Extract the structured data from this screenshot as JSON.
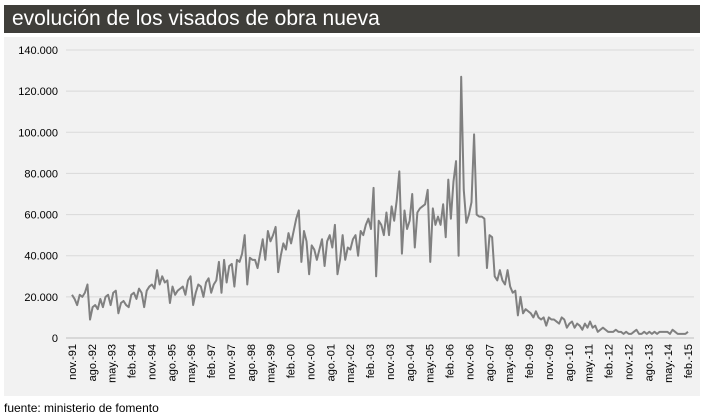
{
  "title": "evolución de los visados de obra nueva",
  "source_note": "fuente: ministerio de fomento",
  "colors": {
    "title_bg": "#3f3e3a",
    "plot_bg": "#f2f2f2",
    "grid": "#d9d9d9",
    "line": "#808080"
  },
  "chart_data": {
    "type": "line",
    "title": "evolución de los visados de obra nueva",
    "xlabel": "",
    "ylabel": "",
    "ylim": [
      0,
      140000
    ],
    "yticks": [
      0,
      20000,
      40000,
      60000,
      80000,
      100000,
      120000,
      140000
    ],
    "ytick_labels": [
      "0",
      "20.000",
      "40.000",
      "60.000",
      "80.000",
      "100.000",
      "120.000",
      "140.000"
    ],
    "grid": true,
    "x_start": "1991-11",
    "x_end": "2015-02",
    "xtick_labels": [
      "nov.-91",
      "ago.-92",
      "may.-93",
      "feb.-94",
      "nov.-94",
      "ago.-95",
      "may.-96",
      "feb.-97",
      "nov.-97",
      "ago.-98",
      "may.-99",
      "feb.-00",
      "nov.-00",
      "ago.-01",
      "may.-02",
      "feb.-03",
      "nov.-03",
      "ago.-04",
      "may.-05",
      "feb.-06",
      "nov.-06",
      "ago.-07",
      "may.-08",
      "feb.-09",
      "nov.-09",
      "ago.-10",
      "may.-11",
      "feb.-12",
      "nov.-12",
      "ago.-13",
      "may.-14",
      "feb.-15"
    ],
    "series": [
      {
        "values": [
          21000,
          19000,
          16000,
          21000,
          20000,
          22000,
          26000,
          9000,
          15000,
          16000,
          14000,
          19000,
          15000,
          20000,
          21000,
          16000,
          22000,
          23000,
          12000,
          17000,
          18000,
          16000,
          15000,
          21000,
          22000,
          19000,
          24000,
          22000,
          15000,
          23000,
          25000,
          26000,
          24000,
          33000,
          26000,
          30000,
          27000,
          28000,
          17000,
          25000,
          21000,
          23000,
          24000,
          25000,
          21000,
          28000,
          30000,
          16000,
          22000,
          26000,
          25000,
          20000,
          27000,
          29000,
          22000,
          26000,
          28000,
          37000,
          22000,
          38000,
          27000,
          35000,
          36000,
          25000,
          38000,
          37000,
          41000,
          50000,
          26000,
          39000,
          38000,
          38000,
          34000,
          41000,
          48000,
          38000,
          52000,
          47000,
          50000,
          54000,
          32000,
          40000,
          46000,
          43000,
          51000,
          46000,
          52000,
          58000,
          62000,
          37000,
          52000,
          47000,
          31000,
          45000,
          43000,
          38000,
          43000,
          48000,
          35000,
          47000,
          50000,
          44000,
          55000,
          31000,
          38000,
          50000,
          38000,
          44000,
          43000,
          48000,
          50000,
          40000,
          52000,
          50000,
          55000,
          58000,
          53000,
          73000,
          30000,
          57000,
          55000,
          50000,
          61000,
          50000,
          64000,
          57000,
          67000,
          81000,
          41000,
          62000,
          53000,
          57000,
          70000,
          44000,
          61000,
          63000,
          64000,
          65000,
          72000,
          37000,
          63000,
          55000,
          59000,
          55000,
          65000,
          49000,
          77000,
          58000,
          76000,
          86000,
          40000,
          127000,
          72000,
          56000,
          60000,
          66000,
          99000,
          60000,
          59000,
          59000,
          58000,
          34000,
          50000,
          49000,
          30000,
          28000,
          33000,
          28000,
          26000,
          33000,
          25000,
          22000,
          23000,
          11000,
          20000,
          12000,
          14000,
          13000,
          12000,
          10000,
          13000,
          10000,
          9000,
          10000,
          6000,
          10000,
          9000,
          9000,
          8000,
          7000,
          10000,
          9000,
          5000,
          7000,
          8000,
          5000,
          7000,
          6000,
          4000,
          7000,
          5000,
          8000,
          5000,
          6000,
          3000,
          4000,
          5000,
          4000,
          3000,
          3000,
          3000,
          4000,
          3000,
          3000,
          2000,
          3000,
          2000,
          2000,
          3000,
          4000,
          2000,
          2000,
          3000,
          2000,
          3000,
          2000,
          3000,
          2000,
          3000,
          3000,
          3000,
          3000,
          2000,
          4000,
          3000,
          2000,
          2000,
          2000,
          2000,
          3000
        ]
      }
    ]
  }
}
